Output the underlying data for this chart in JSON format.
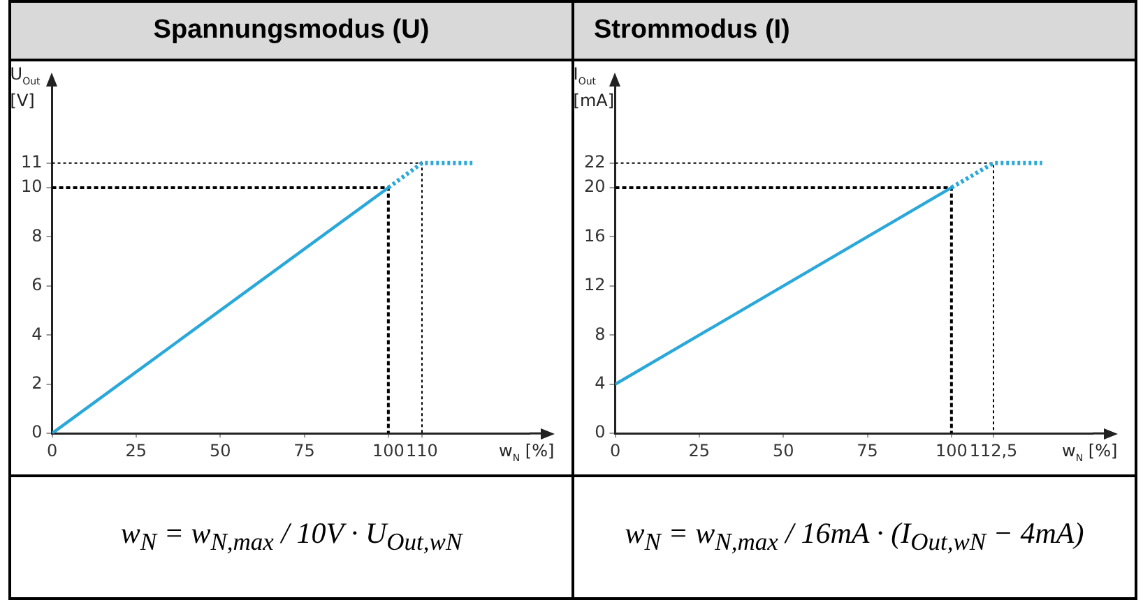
{
  "chart_data": [
    {
      "type": "line",
      "title": "Spannungsmodus (U)",
      "xlabel": "w$_{N}$ [%]",
      "ylabel": "U$_{Out}$ [V]",
      "xlim": [
        0,
        142
      ],
      "ylim": [
        0,
        14
      ],
      "xticks": [
        0,
        25,
        50,
        75,
        100,
        110
      ],
      "yticks": [
        0,
        2,
        4,
        6,
        8,
        10,
        11
      ],
      "grid": false,
      "legend": false,
      "marker": "none",
      "series": [
        {
          "color": "#2aa8d9",
          "line_style": "solid",
          "x": [
            0,
            100
          ],
          "values": [
            0,
            10
          ]
        },
        {
          "color": "#2aa8d9",
          "line_style": "dotted",
          "x": [
            100,
            110,
            125
          ],
          "values": [
            10,
            11,
            11
          ]
        },
        {
          "color": "#000000",
          "line_style": "dashed",
          "x": [
            0,
            100,
            100
          ],
          "values": [
            10,
            10,
            0
          ]
        },
        {
          "color": "#000000",
          "line_style": "dotted",
          "x": [
            0,
            110,
            110
          ],
          "values": [
            11,
            11,
            0
          ]
        }
      ],
      "annotations": [
        "w$_{N}$ = w$_{N,max}$ / 10V · U$_{Out,wN}$"
      ]
    },
    {
      "type": "line",
      "title": "Strommodus (I)",
      "xlabel": "w$_{N}$ [%]",
      "ylabel": "I$_{Out}$ [mA]",
      "xlim": [
        0,
        142
      ],
      "ylim": [
        0,
        28
      ],
      "xticks": [
        0,
        25,
        50,
        75,
        100,
        {
          "value": 112.5,
          "label": "112,5"
        }
      ],
      "yticks": [
        0,
        4,
        8,
        12,
        16,
        20,
        22
      ],
      "grid": false,
      "legend": false,
      "marker": "none",
      "series": [
        {
          "color": "#2aa8d9",
          "line_style": "solid",
          "x": [
            0,
            100
          ],
          "values": [
            4,
            20
          ]
        },
        {
          "color": "#2aa8d9",
          "line_style": "dotted",
          "x": [
            100,
            112.5,
            127
          ],
          "values": [
            20,
            22,
            22
          ]
        },
        {
          "color": "#000000",
          "line_style": "dashed",
          "x": [
            0,
            100,
            100
          ],
          "values": [
            20,
            20,
            0
          ]
        },
        {
          "color": "#000000",
          "line_style": "dotted",
          "x": [
            0,
            112.5,
            112.5
          ],
          "values": [
            22,
            22,
            0
          ]
        }
      ],
      "annotations": [
        "w$_{N}$ = w$_{N,max}$ / 16mA · (I$_{Out,wN}$ − 4mA)"
      ]
    }
  ]
}
